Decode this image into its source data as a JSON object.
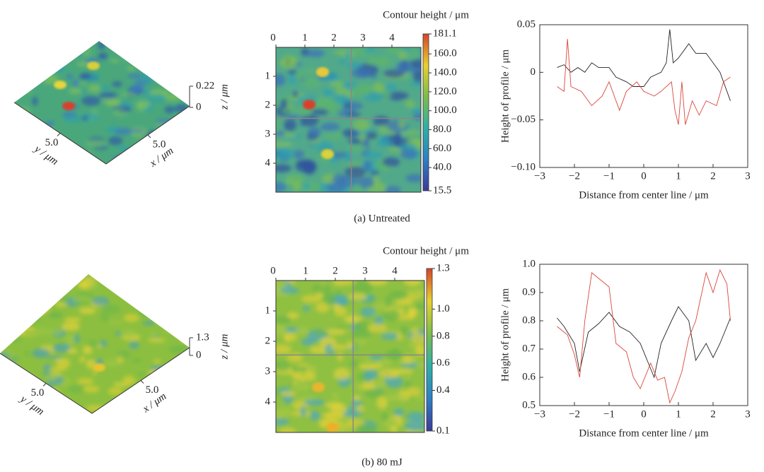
{
  "chart_data": [
    {
      "type": "surface3d",
      "xlabel": "x / μm",
      "ylabel": "y / μm",
      "zlabel": "z / μm",
      "xlim": [
        0,
        10
      ],
      "ylim": [
        0,
        10
      ],
      "zlim": [
        0,
        0.22
      ],
      "xticks": [
        {
          "value": 5,
          "label": "5.0"
        }
      ],
      "yticks": [
        {
          "value": 5,
          "label": "5.0"
        }
      ],
      "zticks": [
        0,
        0.22
      ]
    },
    {
      "type": "heatmap",
      "title": "Contour height / μm",
      "xlim": [
        0,
        5
      ],
      "ylim": [
        0,
        5
      ],
      "xticks": [
        0,
        1,
        2,
        3,
        4
      ],
      "yticks": [
        1,
        2,
        3,
        4
      ],
      "clim": [
        15.5,
        181.1
      ],
      "cticks": [
        181.1,
        {
          "value": 160,
          "label": "160.0"
        },
        {
          "value": 140,
          "label": "140.0"
        },
        {
          "value": 120,
          "label": "120.0"
        },
        {
          "value": 100,
          "label": "100.0"
        },
        {
          "value": 80,
          "label": "80.0"
        },
        {
          "value": 60,
          "label": "60.0"
        },
        {
          "value": 40,
          "label": "40.0"
        },
        15.5
      ]
    },
    {
      "type": "line",
      "xlabel": "Distance from center line / μm",
      "ylabel": "Height of profile / μm",
      "xlim": [
        -3,
        3
      ],
      "ylim": [
        -0.1,
        0.05
      ],
      "xticks": [
        {
          "value": -3,
          "label": "−3"
        },
        {
          "value": -2,
          "label": "−2"
        },
        {
          "value": -1,
          "label": "−1"
        },
        0,
        1,
        2,
        3
      ],
      "yticks": [
        {
          "value": -0.1,
          "label": "−0.10"
        },
        {
          "value": -0.05,
          "label": "−0.05"
        },
        0,
        0.05
      ],
      "series": [
        {
          "color": "#222222",
          "x": [
            -2.5,
            -2.3,
            -2.1,
            -1.9,
            -1.7,
            -1.5,
            -1.3,
            -1.0,
            -0.8,
            -0.5,
            -0.3,
            0,
            0.2,
            0.5,
            0.65,
            0.75,
            0.85,
            1.0,
            1.2,
            1.3,
            1.5,
            1.8,
            2.0,
            2.2,
            2.5
          ],
          "values": [
            0.005,
            0.008,
            0.0,
            0.005,
            0.0,
            0.01,
            0.005,
            0.005,
            -0.005,
            -0.01,
            -0.015,
            -0.015,
            -0.005,
            0.0,
            0.01,
            0.045,
            0.01,
            0.015,
            0.025,
            0.03,
            0.02,
            0.02,
            0.01,
            0.0,
            -0.03
          ]
        },
        {
          "color": "#d9463a",
          "x": [
            -2.5,
            -2.3,
            -2.2,
            -2.1,
            -1.8,
            -1.5,
            -1.2,
            -1.0,
            -0.7,
            -0.5,
            -0.2,
            0,
            0.3,
            0.5,
            0.8,
            0.9,
            1.0,
            1.1,
            1.2,
            1.4,
            1.6,
            1.8,
            2.1,
            2.3,
            2.5
          ],
          "values": [
            -0.015,
            -0.02,
            0.035,
            -0.015,
            -0.02,
            -0.035,
            -0.025,
            -0.01,
            -0.04,
            -0.02,
            -0.01,
            -0.02,
            -0.025,
            -0.02,
            -0.01,
            -0.04,
            -0.055,
            -0.01,
            -0.055,
            -0.03,
            -0.045,
            -0.03,
            -0.035,
            -0.01,
            -0.005
          ]
        }
      ]
    },
    {
      "type": "surface3d",
      "xlabel": "x / μm",
      "ylabel": "y / μm",
      "zlabel": "z / μm",
      "xlim": [
        0,
        10
      ],
      "ylim": [
        0,
        10
      ],
      "zlim": [
        0,
        1.3
      ],
      "xticks": [
        {
          "value": 5,
          "label": "5.0"
        }
      ],
      "yticks": [
        {
          "value": 5,
          "label": "5.0"
        }
      ],
      "zticks": [
        0,
        1.3
      ]
    },
    {
      "type": "heatmap",
      "title": "Contour height / μm",
      "xlim": [
        0,
        5
      ],
      "ylim": [
        0,
        5
      ],
      "xticks": [
        0,
        1,
        2,
        3,
        4
      ],
      "yticks": [
        1,
        2,
        3,
        4
      ],
      "clim": [
        0.1,
        1.3
      ],
      "cticks": [
        1.3,
        {
          "value": 1,
          "label": "1.0"
        },
        0.8,
        0.6,
        0.4,
        0.1
      ]
    },
    {
      "type": "line",
      "xlabel": "Distance from center line / μm",
      "ylabel": "Height of profile / μm",
      "xlim": [
        -3,
        3
      ],
      "ylim": [
        0.5,
        1
      ],
      "xticks": [
        {
          "value": -3,
          "label": "−3"
        },
        {
          "value": -2,
          "label": "−2"
        },
        {
          "value": -1,
          "label": "−1"
        },
        0,
        1,
        2,
        3
      ],
      "yticks": [
        0.5,
        0.6,
        0.7,
        0.8,
        0.9,
        {
          "value": 1,
          "label": "1.0"
        }
      ],
      "series": [
        {
          "color": "#222222",
          "x": [
            -2.5,
            -2.3,
            -2.0,
            -1.85,
            -1.6,
            -1.3,
            -1.0,
            -0.7,
            -0.4,
            -0.1,
            0.1,
            0.3,
            0.5,
            0.8,
            1.0,
            1.3,
            1.5,
            1.8,
            2.0,
            2.2,
            2.4,
            2.5
          ],
          "values": [
            0.81,
            0.78,
            0.72,
            0.62,
            0.76,
            0.79,
            0.83,
            0.78,
            0.76,
            0.72,
            0.66,
            0.6,
            0.72,
            0.8,
            0.85,
            0.8,
            0.66,
            0.72,
            0.67,
            0.72,
            0.78,
            0.81
          ]
        },
        {
          "color": "#d9463a",
          "x": [
            -2.5,
            -2.2,
            -2.0,
            -1.85,
            -1.7,
            -1.5,
            -1.3,
            -1.0,
            -0.8,
            -0.5,
            -0.3,
            -0.1,
            0.2,
            0.4,
            0.6,
            0.75,
            0.9,
            1.1,
            1.3,
            1.5,
            1.8,
            2.0,
            2.2,
            2.4,
            2.5
          ],
          "values": [
            0.78,
            0.75,
            0.68,
            0.6,
            0.8,
            0.97,
            0.95,
            0.92,
            0.72,
            0.69,
            0.6,
            0.56,
            0.65,
            0.59,
            0.6,
            0.51,
            0.55,
            0.62,
            0.74,
            0.8,
            0.97,
            0.9,
            0.98,
            0.93,
            0.8
          ]
        }
      ]
    }
  ],
  "captions": [
    "(a) Untreated",
    "(b) 80 mJ"
  ]
}
